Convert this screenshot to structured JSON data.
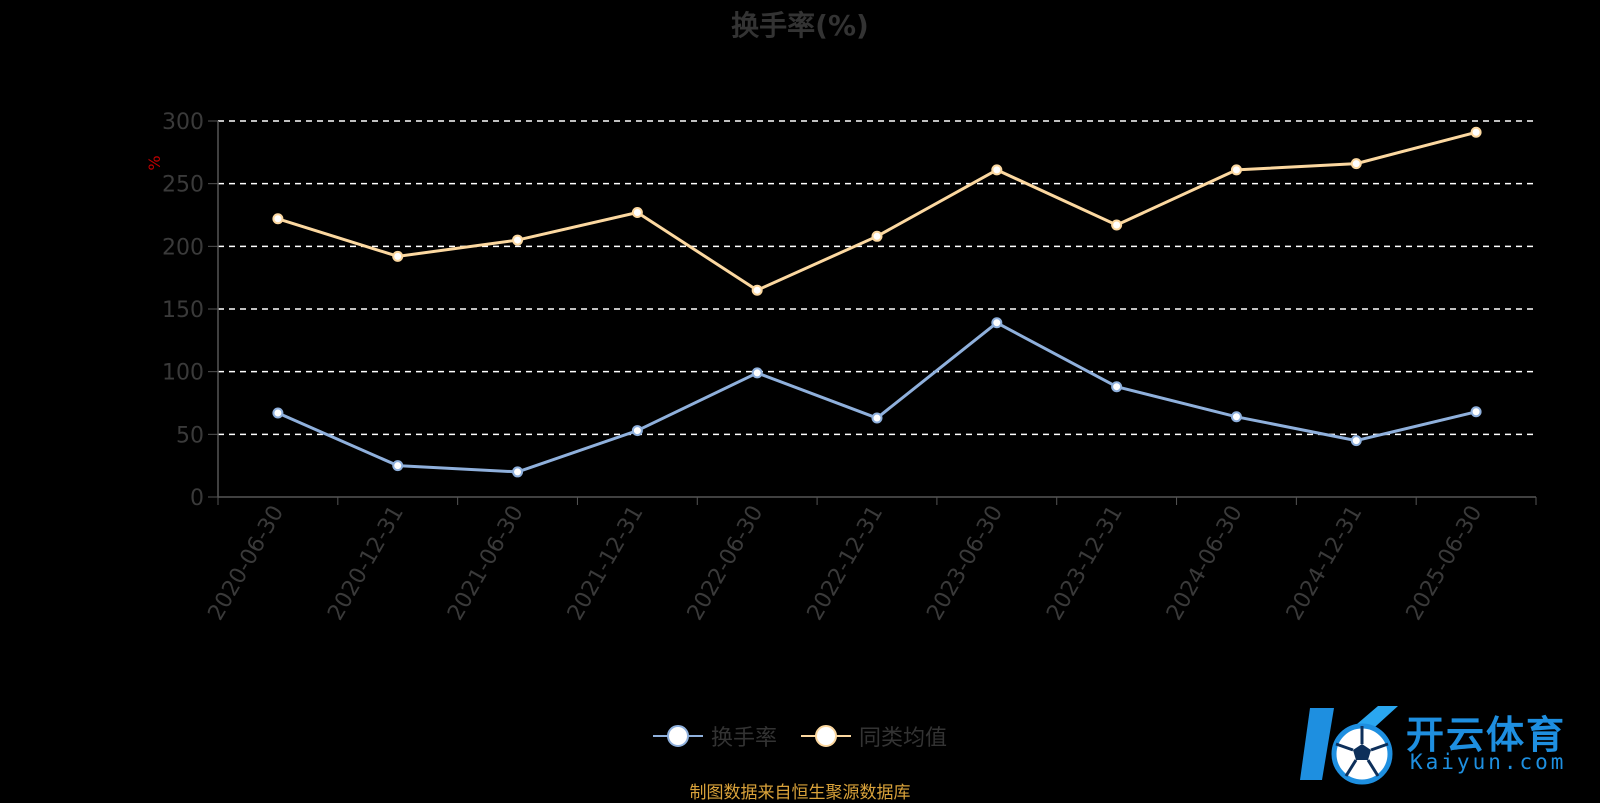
{
  "title": "换手率(%)",
  "source_note": "制图数据来自恒生聚源数据库",
  "watermark": {
    "cn": "开云体育",
    "en": "Kaiyun.com"
  },
  "colors": {
    "background": "#000000",
    "series_turnover": "#8fb0dc",
    "series_peer_avg": "#fcd8a0",
    "grid": "#ffffff",
    "axis": "#555555",
    "tick_label": "#3a3a3a",
    "unit": "#c00000",
    "source_note": "#d9a23a",
    "logo": "#1e8fe0"
  },
  "chart_data": {
    "type": "line",
    "title": "换手率(%)",
    "ylabel": "%",
    "ylim": [
      0,
      300
    ],
    "yticks": [
      0,
      50,
      100,
      150,
      200,
      250,
      300
    ],
    "grid": true,
    "grid_style": "dashed",
    "legend_position": "bottom-center",
    "categories": [
      "2020-06-30",
      "2020-12-31",
      "2021-06-30",
      "2021-12-31",
      "2022-06-30",
      "2022-12-31",
      "2023-06-30",
      "2023-12-31",
      "2024-06-30",
      "2024-12-31",
      "2025-06-30"
    ],
    "series": [
      {
        "name": "换手率",
        "color": "#8fb0dc",
        "values": [
          67,
          25,
          20,
          53,
          99,
          63,
          139,
          88,
          64,
          45,
          68
        ]
      },
      {
        "name": "同类均值",
        "color": "#fcd8a0",
        "values": [
          222,
          192,
          205,
          227,
          165,
          208,
          261,
          217,
          261,
          266,
          291
        ]
      }
    ]
  }
}
